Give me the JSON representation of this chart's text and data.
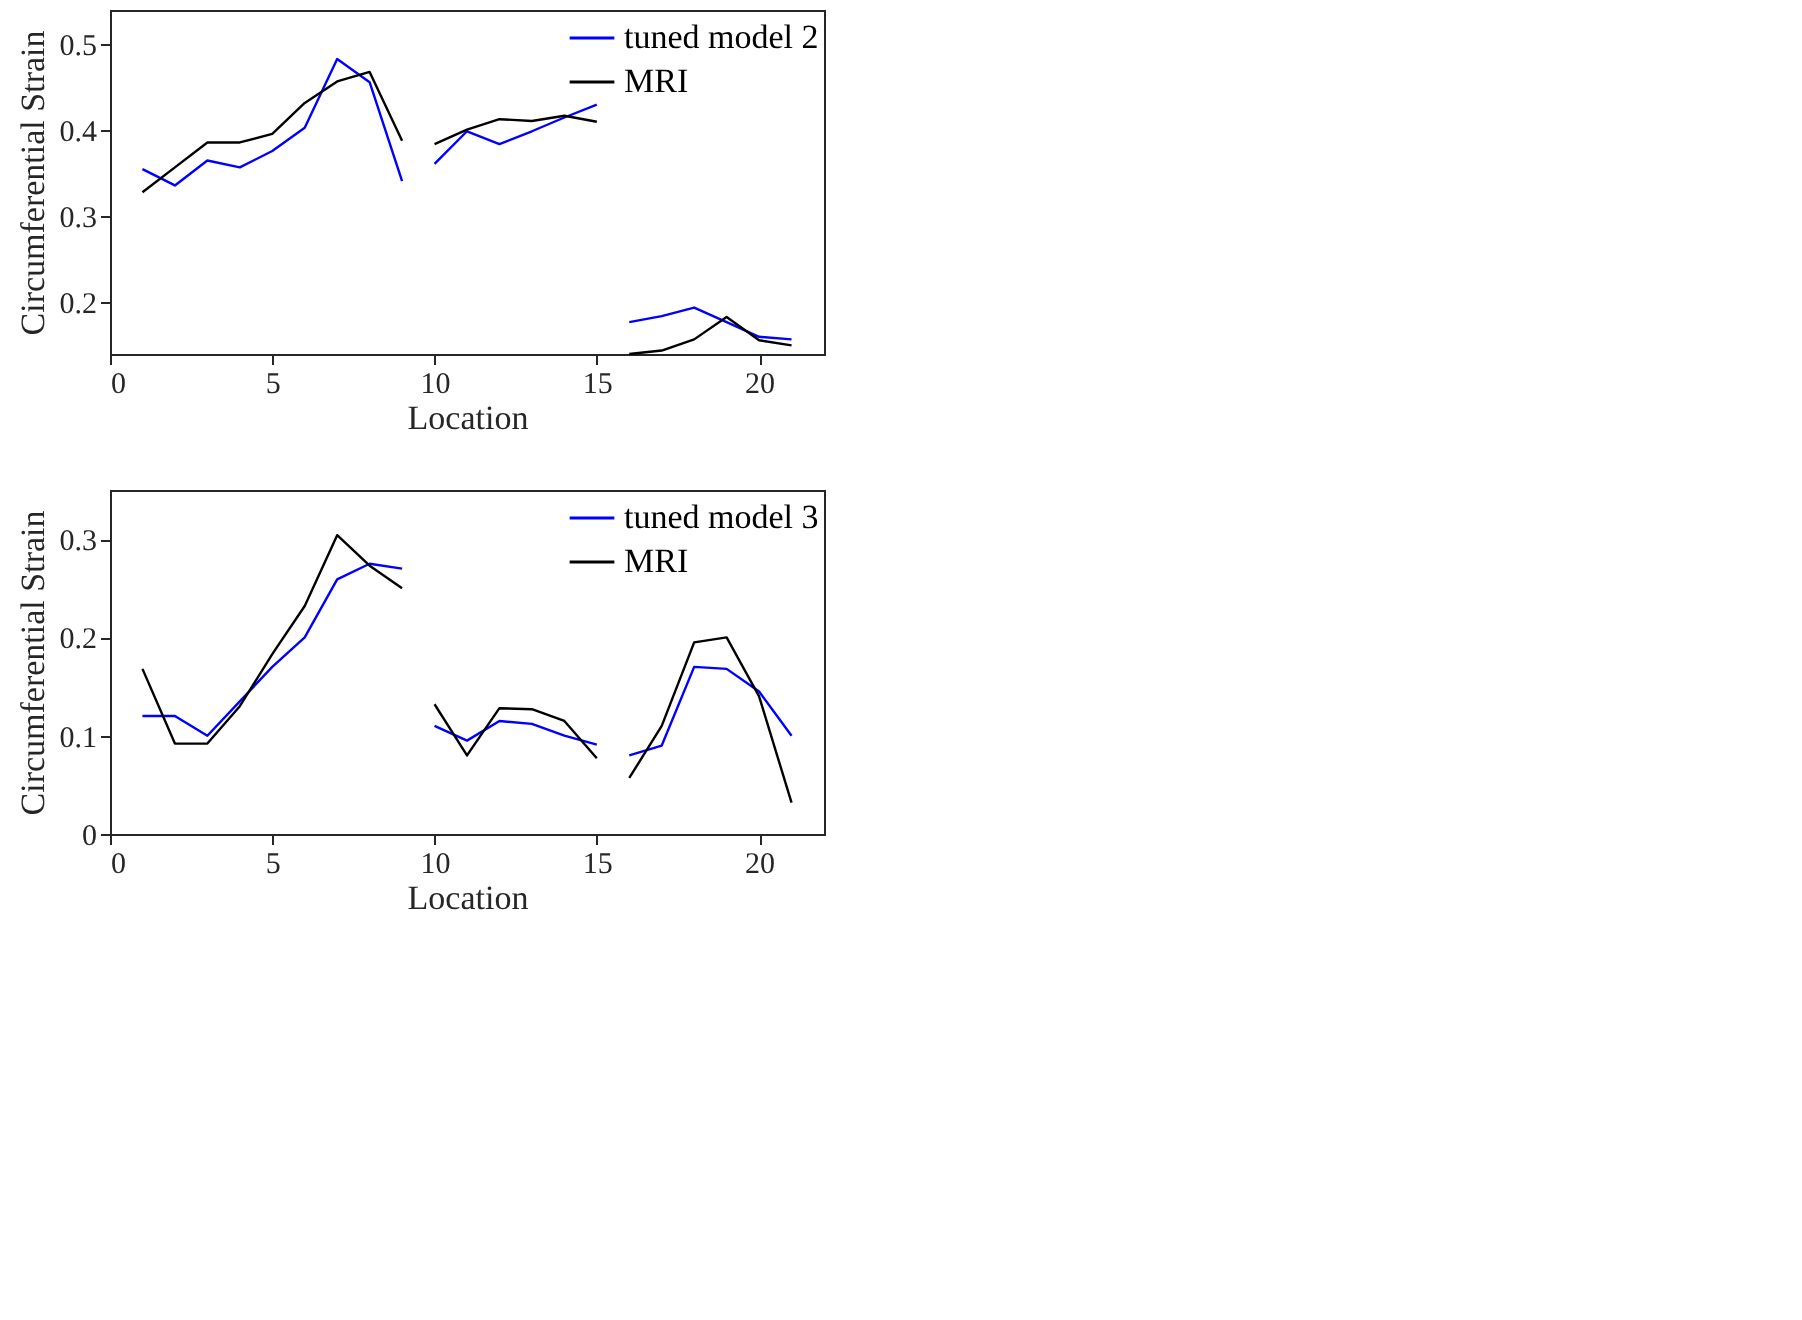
{
  "chart_data": [
    {
      "type": "line",
      "xlabel": "Location",
      "ylabel": "Circumferential Strain",
      "x": [
        1,
        2,
        3,
        4,
        5,
        6,
        7,
        8,
        9,
        9.5,
        10,
        11,
        12,
        13,
        14,
        15,
        15.5,
        16,
        17,
        18,
        19,
        20,
        21
      ],
      "series": [
        {
          "name": "tuned model 2",
          "color": "#0000ff",
          "values": [
            0.355,
            0.336,
            0.365,
            0.357,
            0.376,
            0.403,
            0.483,
            0.456,
            0.341,
            null,
            0.361,
            0.399,
            0.384,
            0.399,
            0.415,
            0.43,
            null,
            0.177,
            0.184,
            0.194,
            0.177,
            0.16,
            0.157
          ]
        },
        {
          "name": "MRI",
          "color": "#000000",
          "values": [
            0.328,
            0.357,
            0.386,
            0.386,
            0.396,
            0.432,
            0.457,
            0.468,
            0.388,
            null,
            0.384,
            0.401,
            0.413,
            0.411,
            0.417,
            0.41,
            null,
            0.14,
            0.144,
            0.157,
            0.183,
            0.156,
            0.15
          ]
        }
      ],
      "xlim": [
        0,
        22
      ],
      "xticks": [
        0,
        5,
        10,
        15,
        20
      ],
      "ylim": [
        0.14,
        0.54
      ],
      "yticks": [
        0.2,
        0.3,
        0.4,
        0.5
      ],
      "grid": false,
      "legend": "top right"
    },
    {
      "type": "line",
      "xlabel": "Location",
      "ylabel": "Circumferential Strain",
      "x": [
        1,
        2,
        3,
        4,
        5,
        6,
        7,
        8,
        9,
        9.5,
        10,
        11,
        12,
        13,
        14,
        15,
        15.5,
        16,
        17,
        18,
        19,
        20,
        21
      ],
      "series": [
        {
          "name": "tuned model 3",
          "color": "#0000ff",
          "values": [
            0.12,
            0.12,
            0.1,
            0.135,
            0.17,
            0.2,
            0.259,
            0.275,
            0.27,
            null,
            0.11,
            0.095,
            0.115,
            0.112,
            0.1,
            0.091,
            null,
            0.08,
            0.09,
            0.17,
            0.168,
            0.145,
            0.1
          ]
        },
        {
          "name": "MRI",
          "color": "#000000",
          "values": [
            0.168,
            0.092,
            0.092,
            0.13,
            0.183,
            0.232,
            0.304,
            0.273,
            0.25,
            null,
            0.132,
            0.08,
            0.128,
            0.127,
            0.115,
            0.077,
            null,
            0.057,
            0.11,
            0.195,
            0.2,
            0.14,
            0.032
          ]
        }
      ],
      "xlim": [
        0,
        22
      ],
      "xticks": [
        0,
        5,
        10,
        15,
        20
      ],
      "ylim": [
        0,
        0.35
      ],
      "yticks": [
        0,
        0.1,
        0.2,
        0.3
      ],
      "grid": false,
      "legend": "top right"
    }
  ]
}
